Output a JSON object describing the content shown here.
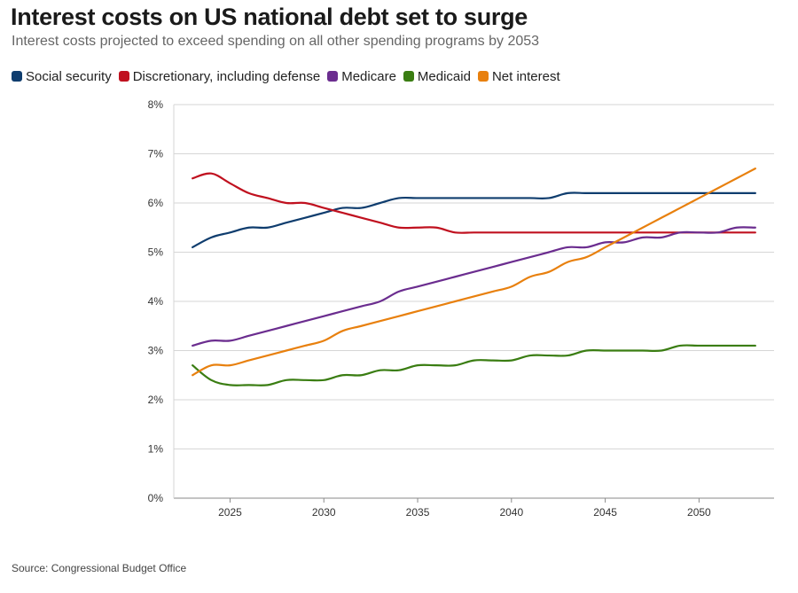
{
  "header": {
    "title": "Interest costs on US national debt set to surge",
    "subtitle": "Interest costs projected to exceed spending on all other spending programs by 2053"
  },
  "source": "Source: Congressional Budget Office",
  "chart_data": {
    "type": "line",
    "title": "Interest costs on US national debt set to surge",
    "subtitle": "Interest costs projected to exceed spending on all other spending programs by 2053",
    "xlabel": "",
    "ylabel": "",
    "x": [
      2023,
      2024,
      2025,
      2026,
      2027,
      2028,
      2029,
      2030,
      2031,
      2032,
      2033,
      2034,
      2035,
      2036,
      2037,
      2038,
      2039,
      2040,
      2041,
      2042,
      2043,
      2044,
      2045,
      2046,
      2047,
      2048,
      2049,
      2050,
      2051,
      2052,
      2053
    ],
    "xlim": [
      2022,
      2054
    ],
    "ylim": [
      0,
      8
    ],
    "xticks": [
      2025,
      2030,
      2035,
      2040,
      2045,
      2050
    ],
    "xtick_labels": [
      "2025",
      "2030",
      "2035",
      "2040",
      "2045",
      "2050"
    ],
    "yticks": [
      0,
      1,
      2,
      3,
      4,
      5,
      6,
      7,
      8
    ],
    "ytick_labels": [
      "0%",
      "1%",
      "2%",
      "3%",
      "4%",
      "5%",
      "6%",
      "7%",
      "8%"
    ],
    "grid": true,
    "legend_position": "top-left",
    "series": [
      {
        "name": "Social security",
        "color": "#0f3d6e",
        "values": [
          5.1,
          5.3,
          5.4,
          5.5,
          5.5,
          5.6,
          5.7,
          5.8,
          5.9,
          5.9,
          6.0,
          6.1,
          6.1,
          6.1,
          6.1,
          6.1,
          6.1,
          6.1,
          6.1,
          6.1,
          6.2,
          6.2,
          6.2,
          6.2,
          6.2,
          6.2,
          6.2,
          6.2,
          6.2,
          6.2,
          6.2
        ]
      },
      {
        "name": "Discretionary, including defense",
        "color": "#c0111f",
        "values": [
          6.5,
          6.6,
          6.4,
          6.2,
          6.1,
          6.0,
          6.0,
          5.9,
          5.8,
          5.7,
          5.6,
          5.5,
          5.5,
          5.5,
          5.4,
          5.4,
          5.4,
          5.4,
          5.4,
          5.4,
          5.4,
          5.4,
          5.4,
          5.4,
          5.4,
          5.4,
          5.4,
          5.4,
          5.4,
          5.4,
          5.4
        ]
      },
      {
        "name": "Medicare",
        "color": "#6b2d8f",
        "values": [
          3.1,
          3.2,
          3.2,
          3.3,
          3.4,
          3.5,
          3.6,
          3.7,
          3.8,
          3.9,
          4.0,
          4.2,
          4.3,
          4.4,
          4.5,
          4.6,
          4.7,
          4.8,
          4.9,
          5.0,
          5.1,
          5.1,
          5.2,
          5.2,
          5.3,
          5.3,
          5.4,
          5.4,
          5.4,
          5.5,
          5.5
        ]
      },
      {
        "name": "Medicaid",
        "color": "#3a7d12",
        "values": [
          2.7,
          2.4,
          2.3,
          2.3,
          2.3,
          2.4,
          2.4,
          2.4,
          2.5,
          2.5,
          2.6,
          2.6,
          2.7,
          2.7,
          2.7,
          2.8,
          2.8,
          2.8,
          2.9,
          2.9,
          2.9,
          3.0,
          3.0,
          3.0,
          3.0,
          3.0,
          3.1,
          3.1,
          3.1,
          3.1,
          3.1
        ]
      },
      {
        "name": "Net interest",
        "color": "#e8800e",
        "values": [
          2.5,
          2.7,
          2.7,
          2.8,
          2.9,
          3.0,
          3.1,
          3.2,
          3.4,
          3.5,
          3.6,
          3.7,
          3.8,
          3.9,
          4.0,
          4.1,
          4.2,
          4.3,
          4.5,
          4.6,
          4.8,
          4.9,
          5.1,
          5.3,
          5.5,
          5.7,
          5.9,
          6.1,
          6.3,
          6.5,
          6.7
        ]
      }
    ]
  }
}
